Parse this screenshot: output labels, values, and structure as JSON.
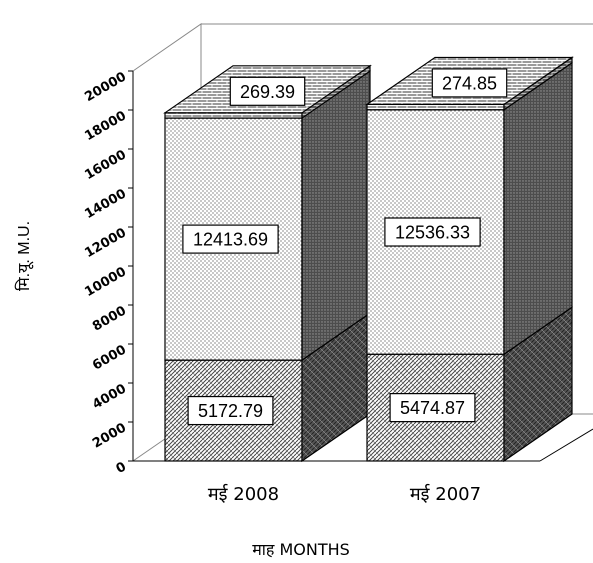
{
  "chart_data": {
    "type": "bar",
    "stacked": true,
    "three_d": true,
    "categories": [
      "मई 2008",
      "मई 2007"
    ],
    "series": [
      {
        "values": [
          5172.79,
          5474.87
        ],
        "pattern": "weave"
      },
      {
        "values": [
          12413.69,
          12536.33
        ],
        "pattern": "dots"
      },
      {
        "values": [
          269.39,
          274.85
        ],
        "pattern": "brick"
      }
    ],
    "y_ticks": [
      "0",
      "2000",
      "4000",
      "6000",
      "8000",
      "10000",
      "12000",
      "14000",
      "16000",
      "18000",
      "20000"
    ],
    "ylim": [
      0,
      20000
    ],
    "ylabel": "मि.यू. M.U.",
    "xlabel": "माह MONTHS",
    "grid": false,
    "legend": "none",
    "colors": {
      "stroke": "#000000",
      "face": "#ffffff",
      "side_dark": "#555555"
    }
  }
}
